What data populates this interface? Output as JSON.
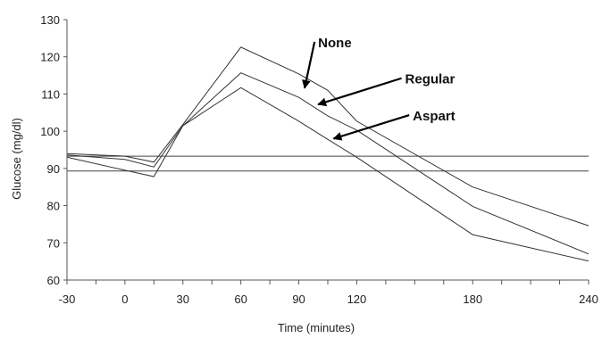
{
  "chart_data": {
    "type": "line",
    "xlabel": "Time (minutes)",
    "ylabel": "Glucose (mg/dl)",
    "xlim": [
      -30,
      240
    ],
    "ylim": [
      60,
      130
    ],
    "x_tick_labels": [
      "-30",
      "0",
      "30",
      "60",
      "90",
      "120",
      "180",
      "240"
    ],
    "x_ticks": [
      -30,
      0,
      30,
      60,
      90,
      120,
      180,
      240
    ],
    "x_minor_ticks": [
      -30,
      -15,
      0,
      15,
      30,
      45,
      60,
      75,
      90,
      105,
      120,
      135,
      150,
      165,
      180,
      195,
      210,
      225,
      240
    ],
    "y_tick_labels": [
      "60",
      "70",
      "80",
      "90",
      "100",
      "110",
      "120",
      "130"
    ],
    "y_ticks": [
      60,
      70,
      80,
      90,
      100,
      110,
      120,
      130
    ],
    "reference_lines": [
      93.3,
      89.3
    ],
    "series": [
      {
        "name": "None",
        "x": [
          -30,
          0,
          15,
          30,
          60,
          90,
          105,
          120,
          180,
          240
        ],
        "values": [
          94.0,
          93.3,
          91.7,
          101.8,
          122.6,
          115.4,
          111.0,
          102.7,
          85.0,
          74.6
        ]
      },
      {
        "name": "Regular",
        "x": [
          -30,
          0,
          15,
          30,
          60,
          90,
          105,
          120,
          180,
          240
        ],
        "values": [
          93.6,
          92.4,
          90.4,
          101.5,
          115.7,
          109.1,
          104.1,
          100.3,
          79.8,
          67.0
        ]
      },
      {
        "name": "Aspart",
        "x": [
          -30,
          0,
          15,
          30,
          60,
          90,
          105,
          120,
          180,
          240
        ],
        "values": [
          93.0,
          89.5,
          87.8,
          101.5,
          111.7,
          102.7,
          97.8,
          93.0,
          72.2,
          65.1
        ]
      }
    ],
    "annotations": [
      {
        "text": "None",
        "label_at": [
          100,
          122.6
        ],
        "points_to": [
          93,
          111.6
        ]
      },
      {
        "text": "Regular",
        "label_at": [
          145,
          112.8
        ],
        "points_to": [
          100,
          107.2
        ]
      },
      {
        "text": "Aspart",
        "label_at": [
          149,
          102.9
        ],
        "points_to": [
          108,
          98.0
        ]
      }
    ],
    "colors": {
      "line": "#333333",
      "text": "#222222",
      "arrow": "#000000"
    }
  }
}
